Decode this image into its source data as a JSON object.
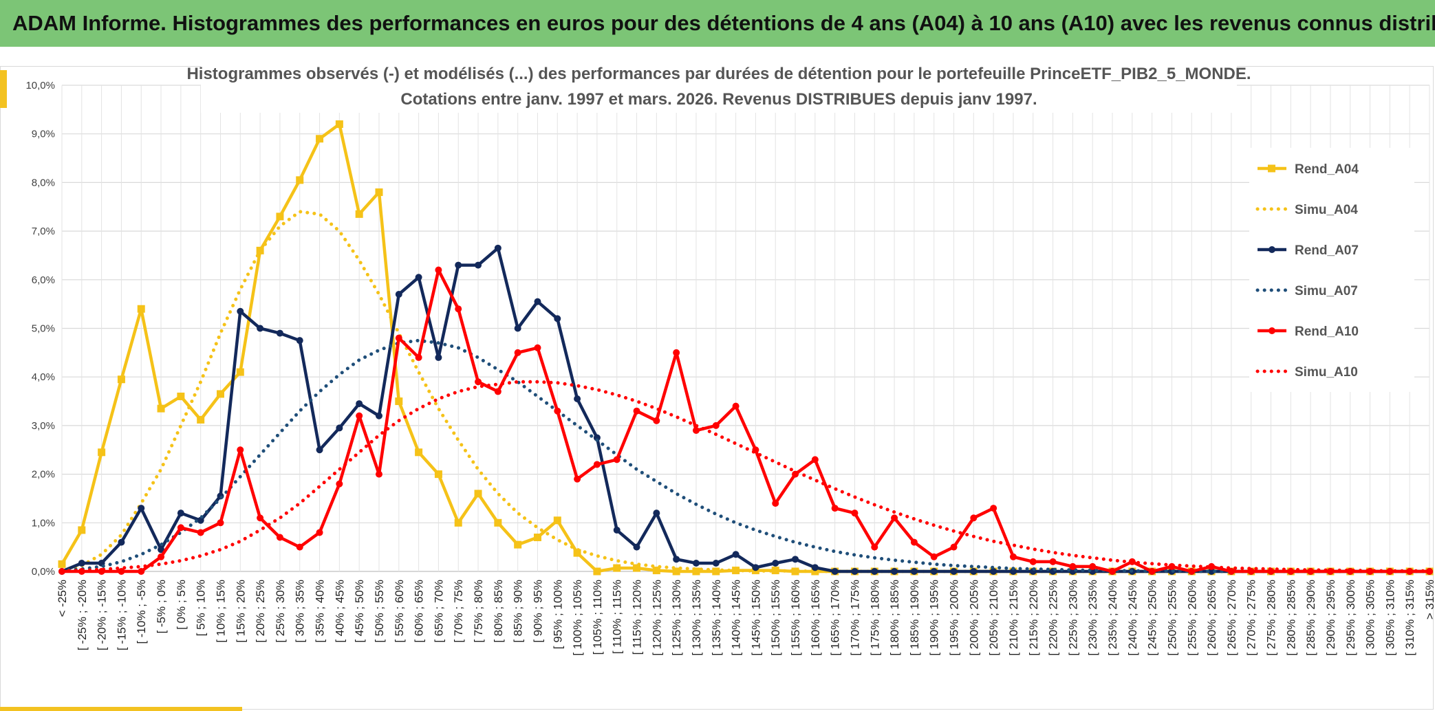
{
  "header": {
    "title": "ADAM Informe. Histogrammes des performances en euros pour des détentions de 4 ans (A04) à 10 ans (A10) avec les revenus connus distribués"
  },
  "chart_data": {
    "type": "line",
    "title": "Histogrammes observés (-) et modélisés (...) des performances par durées de détention pour le portefeuille PrinceETF_PIB2_5_MONDE.",
    "subtitle": "Cotations entre janv. 1997 et mars. 2026. Revenus DISTRIBUES depuis janv 1997.",
    "xlabel": "",
    "ylabel": "",
    "ylim": [
      0,
      10
    ],
    "y_ticks": [
      "0,0%",
      "1,0%",
      "2,0%",
      "3,0%",
      "4,0%",
      "5,0%",
      "6,0%",
      "7,0%",
      "8,0%",
      "9,0%",
      "10,0%"
    ],
    "grid": true,
    "legend_position": "right",
    "categories": [
      "< -25%",
      "[ -25% ; -20%",
      "[ -20% ; -15%",
      "[ -15% ; -10%",
      "[ -10% ; -5%",
      "[ -5% ; 0%",
      "[ 0% ; 5%",
      "[ 5% ; 10%",
      "[ 10% ; 15%",
      "[ 15% ; 20%",
      "[ 20% ; 25%",
      "[ 25% ; 30%",
      "[ 30% ; 35%",
      "[ 35% ; 40%",
      "[ 40% ; 45%",
      "[ 45% ; 50%",
      "[ 50% ; 55%",
      "[ 55% ; 60%",
      "[ 60% ; 65%",
      "[ 65% ; 70%",
      "[ 70% ; 75%",
      "[ 75% ; 80%",
      "[ 80% ; 85%",
      "[ 85% ; 90%",
      "[ 90% ; 95%",
      "[ 95% ; 100%",
      "[ 100% ; 105%",
      "[ 105% ; 110%",
      "[ 110% ; 115%",
      "[ 115% ; 120%",
      "[ 120% ; 125%",
      "[ 125% ; 130%",
      "[ 130% ; 135%",
      "[ 135% ; 140%",
      "[ 140% ; 145%",
      "[ 145% ; 150%",
      "[ 150% ; 155%",
      "[ 155% ; 160%",
      "[ 160% ; 165%",
      "[ 165% ; 170%",
      "[ 170% ; 175%",
      "[ 175% ; 180%",
      "[ 180% ; 185%",
      "[ 185% ; 190%",
      "[ 190% ; 195%",
      "[ 195% ; 200%",
      "[ 200% ; 205%",
      "[ 205% ; 210%",
      "[ 210% ; 215%",
      "[ 215% ; 220%",
      "[ 220% ; 225%",
      "[ 225% ; 230%",
      "[ 230% ; 235%",
      "[ 235% ; 240%",
      "[ 240% ; 245%",
      "[ 245% ; 250%",
      "[ 250% ; 255%",
      "[ 255% ; 260%",
      "[ 260% ; 265%",
      "[ 265% ; 270%",
      "[ 270% ; 275%",
      "[ 275% ; 280%",
      "[ 280% ; 285%",
      "[ 285% ; 290%",
      "[ 290% ; 295%",
      "[ 295% ; 300%",
      "[ 300% ; 305%",
      "[ 305% ; 310%",
      "[ 310% ; 315%",
      "> 315%"
    ],
    "series": [
      {
        "name": "Rend_A04",
        "color": "#f5c218",
        "style": "solid",
        "marker": "square",
        "values": [
          0.15,
          0.85,
          2.45,
          3.95,
          5.4,
          3.35,
          3.6,
          3.12,
          3.65,
          4.1,
          6.6,
          7.3,
          8.05,
          8.9,
          9.2,
          7.35,
          7.8,
          3.5,
          2.45,
          2.0,
          1.0,
          1.6,
          1.0,
          0.55,
          0.7,
          1.05,
          0.38,
          0.0,
          0.07,
          0.07,
          0.02,
          0.0,
          0.0,
          0.0,
          0.02,
          0.02,
          0.02,
          0.0,
          0.0,
          0,
          0,
          0,
          0,
          0,
          0,
          0,
          0,
          0,
          0,
          0,
          0,
          0,
          0,
          0,
          0,
          0,
          0,
          0,
          0,
          0,
          0,
          0,
          0,
          0,
          0,
          0,
          0,
          0,
          0,
          0
        ]
      },
      {
        "name": "Simu_A04",
        "color": "#f5c218",
        "style": "dotted",
        "marker": "none",
        "values": [
          0.02,
          0.12,
          0.35,
          0.75,
          1.4,
          2.1,
          3.0,
          3.9,
          4.9,
          5.8,
          6.6,
          7.1,
          7.4,
          7.35,
          7.0,
          6.4,
          5.7,
          4.9,
          4.1,
          3.35,
          2.7,
          2.1,
          1.6,
          1.2,
          0.9,
          0.65,
          0.45,
          0.32,
          0.22,
          0.15,
          0.1,
          0.07,
          0.05,
          0.03,
          0.02,
          0.01,
          0.01,
          0.01,
          0,
          0,
          0,
          0,
          0,
          0,
          0,
          0,
          0,
          0,
          0,
          0,
          0,
          0,
          0,
          0,
          0,
          0,
          0,
          0,
          0,
          0,
          0,
          0,
          0,
          0,
          0,
          0,
          0,
          0,
          0,
          0
        ]
      },
      {
        "name": "Rend_A07",
        "color": "#13295b",
        "style": "solid",
        "marker": "circle",
        "values": [
          0.0,
          0.17,
          0.17,
          0.6,
          1.3,
          0.45,
          1.2,
          1.05,
          1.55,
          5.35,
          5.0,
          4.9,
          4.75,
          2.5,
          2.95,
          3.45,
          3.2,
          5.7,
          6.05,
          4.4,
          6.3,
          6.3,
          6.65,
          5.0,
          5.55,
          5.2,
          3.55,
          2.75,
          0.85,
          0.5,
          1.2,
          0.25,
          0.17,
          0.17,
          0.35,
          0.08,
          0.17,
          0.25,
          0.08,
          0.0,
          0.0,
          0.0,
          0.0,
          0.0,
          0.0,
          0.0,
          0.0,
          0.0,
          0.0,
          0.0,
          0.0,
          0.0,
          0.0,
          0.0,
          0.0,
          0.0,
          0.0,
          0.0,
          0.0,
          0.0,
          0.0,
          0.0,
          0.0,
          0.0,
          0.0,
          0.0,
          0.0,
          0.0,
          0.0,
          0.0
        ]
      },
      {
        "name": "Simu_A07",
        "color": "#1f4e79",
        "style": "dotted",
        "marker": "none",
        "values": [
          0.02,
          0.05,
          0.1,
          0.2,
          0.35,
          0.55,
          0.8,
          1.1,
          1.5,
          1.95,
          2.4,
          2.85,
          3.3,
          3.7,
          4.05,
          4.35,
          4.55,
          4.7,
          4.75,
          4.7,
          4.6,
          4.4,
          4.15,
          3.9,
          3.6,
          3.3,
          3.0,
          2.7,
          2.4,
          2.1,
          1.85,
          1.6,
          1.38,
          1.18,
          1.0,
          0.85,
          0.72,
          0.6,
          0.5,
          0.41,
          0.34,
          0.28,
          0.23,
          0.19,
          0.15,
          0.12,
          0.1,
          0.08,
          0.06,
          0.05,
          0.04,
          0.03,
          0.02,
          0.02,
          0.01,
          0.01,
          0.01,
          0,
          0,
          0,
          0,
          0,
          0,
          0,
          0,
          0,
          0,
          0,
          0,
          0
        ]
      },
      {
        "name": "Rend_A10",
        "color": "#ff0000",
        "style": "solid",
        "marker": "circle",
        "values": [
          0.0,
          0.0,
          0.0,
          0.0,
          0.0,
          0.3,
          0.9,
          0.8,
          1.0,
          2.5,
          1.1,
          0.7,
          0.5,
          0.8,
          1.8,
          3.2,
          2.0,
          4.8,
          4.4,
          6.2,
          5.4,
          3.9,
          3.7,
          4.5,
          4.6,
          3.3,
          1.9,
          2.2,
          2.3,
          3.3,
          3.1,
          4.5,
          2.9,
          3.0,
          3.4,
          2.5,
          1.4,
          2.0,
          2.3,
          1.3,
          1.2,
          0.5,
          1.1,
          0.6,
          0.3,
          0.5,
          1.1,
          1.3,
          0.3,
          0.2,
          0.2,
          0.1,
          0.1,
          0.0,
          0.2,
          0.0,
          0.1,
          0.0,
          0.1,
          0.0,
          0.0,
          0.0,
          0.0,
          0.0,
          0.0,
          0.0,
          0.0,
          0.0,
          0.0,
          0.0
        ]
      },
      {
        "name": "Simu_A10",
        "color": "#ff0000",
        "style": "dotted",
        "marker": "none",
        "values": [
          0.01,
          0.02,
          0.04,
          0.07,
          0.1,
          0.15,
          0.22,
          0.32,
          0.45,
          0.62,
          0.85,
          1.1,
          1.4,
          1.75,
          2.1,
          2.45,
          2.8,
          3.1,
          3.35,
          3.55,
          3.7,
          3.8,
          3.85,
          3.9,
          3.9,
          3.88,
          3.82,
          3.74,
          3.63,
          3.5,
          3.35,
          3.18,
          3.0,
          2.82,
          2.63,
          2.44,
          2.25,
          2.06,
          1.88,
          1.7,
          1.53,
          1.37,
          1.22,
          1.08,
          0.95,
          0.83,
          0.72,
          0.62,
          0.54,
          0.46,
          0.39,
          0.33,
          0.28,
          0.23,
          0.19,
          0.16,
          0.13,
          0.11,
          0.09,
          0.07,
          0.06,
          0.05,
          0.04,
          0.03,
          0.025,
          0.02,
          0.015,
          0.01,
          0.01,
          0.01
        ]
      }
    ]
  }
}
